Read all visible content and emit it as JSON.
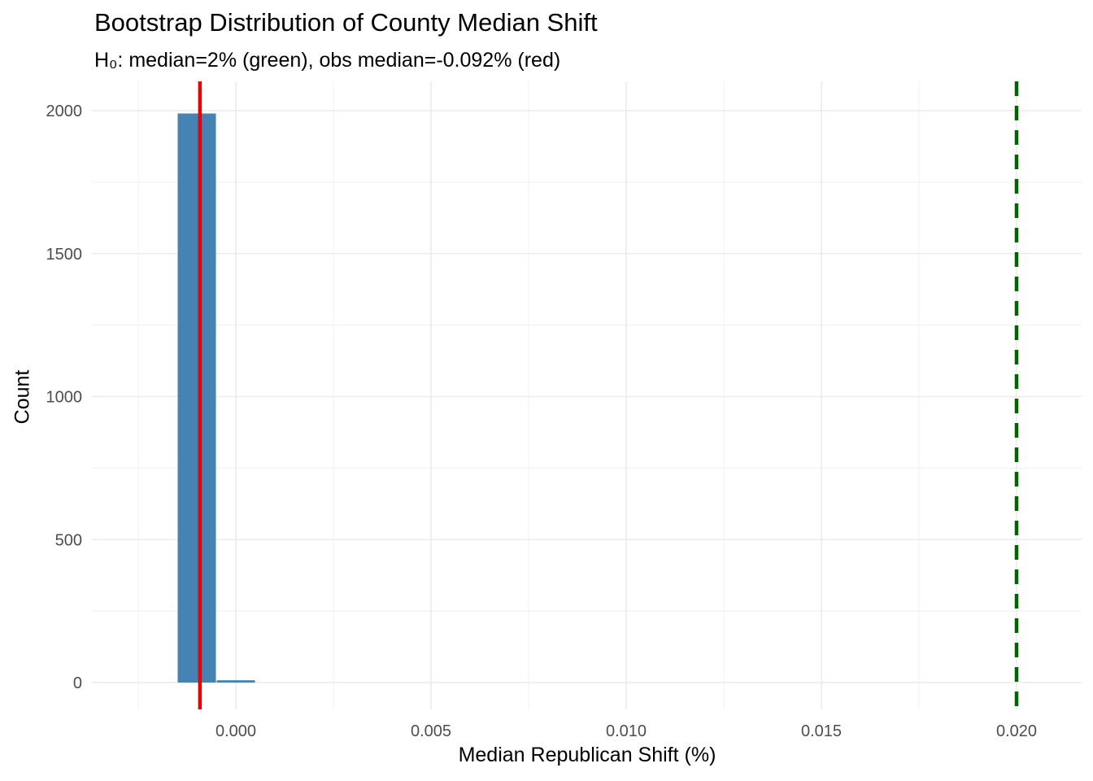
{
  "chart_data": {
    "type": "bar",
    "title": "Bootstrap Distribution of County Median Shift",
    "subtitle": "H₀: median=2% (green), obs median=-0.092% (red)",
    "xlabel": "Median Republican Shift (%)",
    "ylabel": "Count",
    "xlim": [
      -0.0035,
      0.021
    ],
    "ylim": [
      -100,
      2100
    ],
    "x_ticks": [
      0.0,
      0.005,
      0.01,
      0.015,
      0.02
    ],
    "x_tick_labels": [
      "0.000",
      "0.005",
      "0.010",
      "0.015",
      "0.020"
    ],
    "y_ticks": [
      0,
      500,
      1000,
      1500,
      2000
    ],
    "y_tick_labels": [
      "0",
      "500",
      "1000",
      "1500",
      "2000"
    ],
    "grid": true,
    "bars": [
      {
        "x0": -0.0015,
        "x1": -0.0005,
        "count": 1990
      },
      {
        "x0": -0.0005,
        "x1": 0.0005,
        "count": 8
      }
    ],
    "bar_color": "#4682B4",
    "reference_lines": [
      {
        "value": -0.00092,
        "color": "#EE0000",
        "style": "solid",
        "label": "obs median"
      },
      {
        "value": 0.02,
        "color": "#006400",
        "style": "dashed",
        "label": "H0 median"
      }
    ]
  }
}
